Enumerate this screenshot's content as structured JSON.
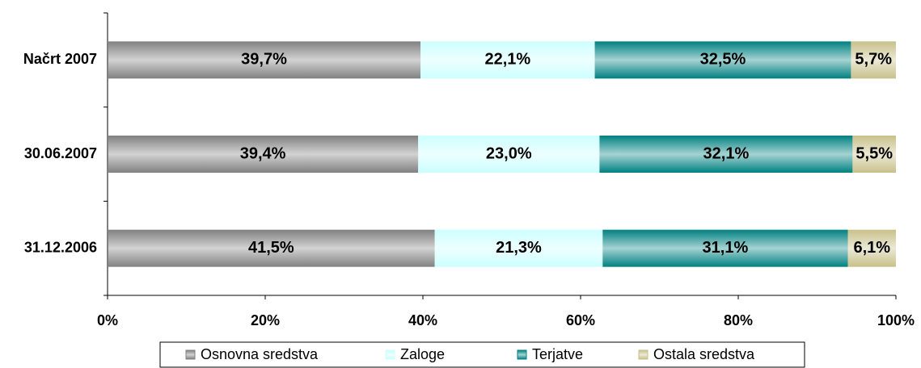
{
  "chart_data": {
    "type": "stacked-bar-horizontal",
    "categories": [
      "Načrt 2007",
      "30.06.2007",
      "31.12.2006"
    ],
    "series": [
      {
        "name": "Osnovna sredstva",
        "color": "#808080",
        "values": [
          39.7,
          39.4,
          41.5
        ],
        "value_labels": [
          "39,7%",
          "39,4%",
          "41,5%"
        ]
      },
      {
        "name": "Zaloge",
        "color": "#ccffff",
        "values": [
          22.1,
          23.0,
          21.3
        ],
        "value_labels": [
          "22,1%",
          "23,0%",
          "21,3%"
        ]
      },
      {
        "name": "Terjatve",
        "color": "#008080",
        "values": [
          32.5,
          32.1,
          31.1
        ],
        "value_labels": [
          "32,5%",
          "32,1%",
          "31,1%"
        ]
      },
      {
        "name": "Ostala sredstva",
        "color": "#c8c08a",
        "values": [
          5.7,
          5.5,
          6.1
        ],
        "value_labels": [
          "5,7%",
          "5,5%",
          "6,1%"
        ]
      }
    ],
    "xlim": [
      0,
      100
    ],
    "xticks": [
      {
        "value": 0,
        "label": "0%"
      },
      {
        "value": 20,
        "label": "20%"
      },
      {
        "value": 40,
        "label": "40%"
      },
      {
        "value": 60,
        "label": "60%"
      },
      {
        "value": 80,
        "label": "80%"
      },
      {
        "value": 100,
        "label": "100%"
      }
    ],
    "legend": "bottom"
  }
}
